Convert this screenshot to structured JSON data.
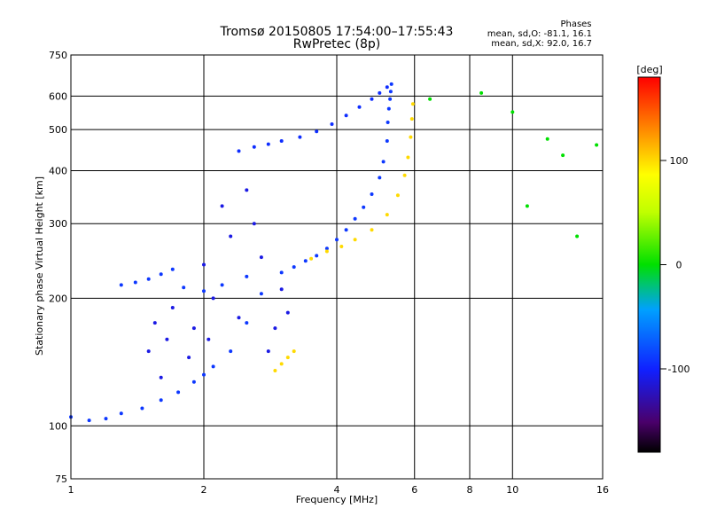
{
  "chart_data": {
    "type": "scatter",
    "title": "Tromsø 20150805 17:54:00–17:55:43",
    "subtitle": "RwPretec (8p)",
    "xlabel": "Frequency [MHz]",
    "ylabel": "Stationary phase Virtual Height [km]",
    "xscale": "log",
    "yscale": "log",
    "xlim": [
      1,
      16
    ],
    "ylim": [
      75,
      750
    ],
    "xticks": [
      1,
      2,
      4,
      6,
      8,
      10,
      16
    ],
    "yticks": [
      75,
      100,
      200,
      300,
      400,
      500,
      600,
      750
    ],
    "grid": true,
    "stats": {
      "heading": "Phases",
      "line1": "mean, sd,O: -81.1, 16.1",
      "line2": "mean, sd,X: 92.0, 16.7"
    },
    "colorbar": {
      "label": "[deg]",
      "range": [
        -180,
        180
      ],
      "ticks": [
        -100,
        0,
        100
      ]
    },
    "series": [
      {
        "name": "O-mode trace (blue)",
        "phase_deg": -90,
        "x": [
          1.0,
          1.1,
          1.2,
          1.3,
          1.45,
          1.6,
          1.75,
          1.9,
          2.0,
          2.1,
          2.3,
          2.5,
          2.7,
          3.0,
          3.2,
          3.4,
          3.6,
          3.8,
          4.0,
          4.2,
          4.4,
          4.6,
          4.8,
          5.0,
          5.1,
          5.2,
          5.22,
          5.25,
          5.28,
          5.3,
          5.32
        ],
        "y": [
          105,
          103,
          104,
          107,
          110,
          115,
          120,
          127,
          132,
          138,
          150,
          175,
          205,
          230,
          237,
          245,
          252,
          262,
          275,
          290,
          308,
          328,
          352,
          385,
          420,
          470,
          520,
          560,
          590,
          615,
          640
        ]
      },
      {
        "name": "O-mode trace 2 (blue)",
        "phase_deg": -90,
        "x": [
          1.3,
          1.4,
          1.5,
          1.6,
          1.7,
          1.8,
          2.0,
          2.2,
          2.5
        ],
        "y": [
          215,
          218,
          222,
          228,
          234,
          212,
          208,
          215,
          225
        ]
      },
      {
        "name": "X-mode trace (yellow)",
        "phase_deg": 100,
        "x": [
          2.9,
          3.0,
          3.1,
          3.2,
          3.5,
          3.8,
          4.1,
          4.4,
          4.8,
          5.2,
          5.5,
          5.7,
          5.8,
          5.88,
          5.92,
          5.95
        ],
        "y": [
          135,
          140,
          145,
          150,
          248,
          258,
          265,
          275,
          290,
          315,
          350,
          390,
          430,
          480,
          530,
          575
        ]
      },
      {
        "name": "Upper F trace (blue)",
        "phase_deg": -95,
        "x": [
          2.4,
          2.6,
          2.8,
          3.0,
          3.3,
          3.6,
          3.9,
          4.2,
          4.5,
          4.8,
          5.0,
          5.2
        ],
        "y": [
          445,
          455,
          462,
          470,
          480,
          495,
          515,
          540,
          565,
          590,
          610,
          630
        ]
      },
      {
        "name": "Scattered echoes",
        "phase_deg": -110,
        "x": [
          1.5,
          1.55,
          1.6,
          1.65,
          1.7,
          1.85,
          1.9,
          2.0,
          2.05,
          2.1,
          2.2,
          2.3,
          2.4,
          2.5,
          2.6,
          2.7,
          2.8,
          2.9,
          3.0,
          3.1
        ],
        "y": [
          150,
          175,
          130,
          160,
          190,
          145,
          170,
          240,
          160,
          200,
          330,
          280,
          180,
          360,
          300,
          250,
          150,
          170,
          210,
          185
        ]
      },
      {
        "name": "Isolated points",
        "phase_deg": 0,
        "x": [
          6.5,
          8.5,
          10.0,
          10.8,
          12.0,
          13.0,
          14.0,
          15.5
        ],
        "y": [
          590,
          610,
          550,
          330,
          475,
          435,
          280,
          460
        ]
      }
    ]
  }
}
